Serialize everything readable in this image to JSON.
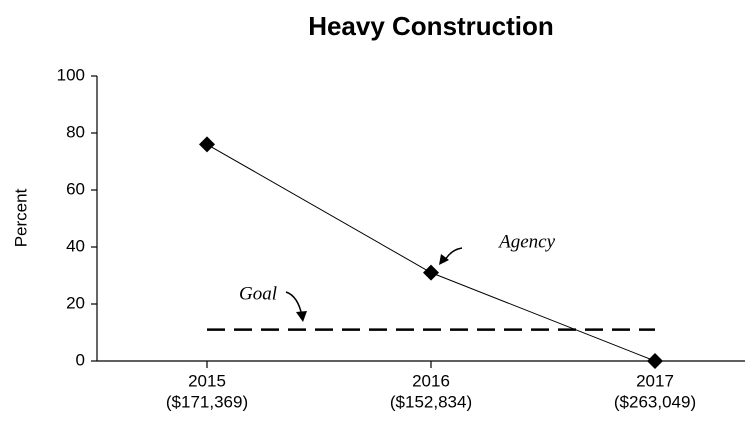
{
  "chart_data": {
    "type": "line",
    "title": "Heavy Construction",
    "y_label": "Percent",
    "categories": [
      "2015",
      "2016",
      "2017"
    ],
    "category_sublabels": [
      "($171,369)",
      "($152,834)",
      "($263,049)"
    ],
    "series": [
      {
        "name": "Agency",
        "color": "#000000",
        "values": [
          76,
          31,
          0
        ],
        "markers": true
      },
      {
        "name": "Goal",
        "color": "#000000",
        "values": [
          11,
          11,
          11
        ],
        "dashed": true
      }
    ],
    "ylim": [
      0,
      100
    ],
    "yticks": [
      0,
      20,
      40,
      60,
      80,
      100
    ]
  }
}
